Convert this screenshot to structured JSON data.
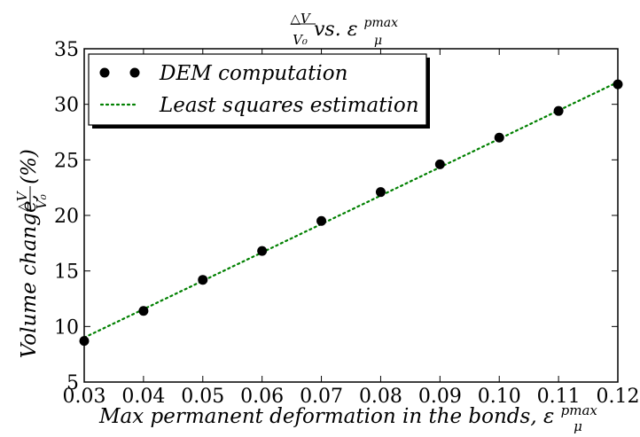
{
  "chart_data": {
    "type": "scatter",
    "title": {
      "frac_num": "△V",
      "frac_den": "V₀",
      "text": " vs. ε",
      "sup": "pmax",
      "sub": "μ"
    },
    "xlabel": {
      "text": "Max permanent deformation in the bonds, ε",
      "sup": "pmax",
      "sub": "μ"
    },
    "ylabel": {
      "prefix": "Volume change, ",
      "frac_num": "△V",
      "frac_den": "V₀",
      "suffix": " (%)"
    },
    "xlim": [
      0.03,
      0.12
    ],
    "ylim": [
      5,
      35
    ],
    "xticks": [
      "0.03",
      "0.04",
      "0.05",
      "0.06",
      "0.07",
      "0.08",
      "0.09",
      "0.10",
      "0.11",
      "0.12"
    ],
    "yticks": [
      "5",
      "10",
      "15",
      "20",
      "25",
      "30",
      "35"
    ],
    "grid": false,
    "legend_position": "top-left",
    "series": [
      {
        "name": "DEM computation",
        "style": "markers",
        "color": "#000000",
        "x": [
          0.03,
          0.04,
          0.05,
          0.06,
          0.07,
          0.08,
          0.09,
          0.1,
          0.11,
          0.12
        ],
        "y": [
          8.7,
          11.4,
          14.2,
          16.8,
          19.5,
          22.1,
          24.6,
          27.0,
          29.4,
          31.8
        ]
      },
      {
        "name": "Least squares estimation",
        "style": "dotted-line",
        "color": "#008000",
        "x": [
          0.03,
          0.12
        ],
        "y": [
          9.0,
          32.0
        ]
      }
    ]
  }
}
